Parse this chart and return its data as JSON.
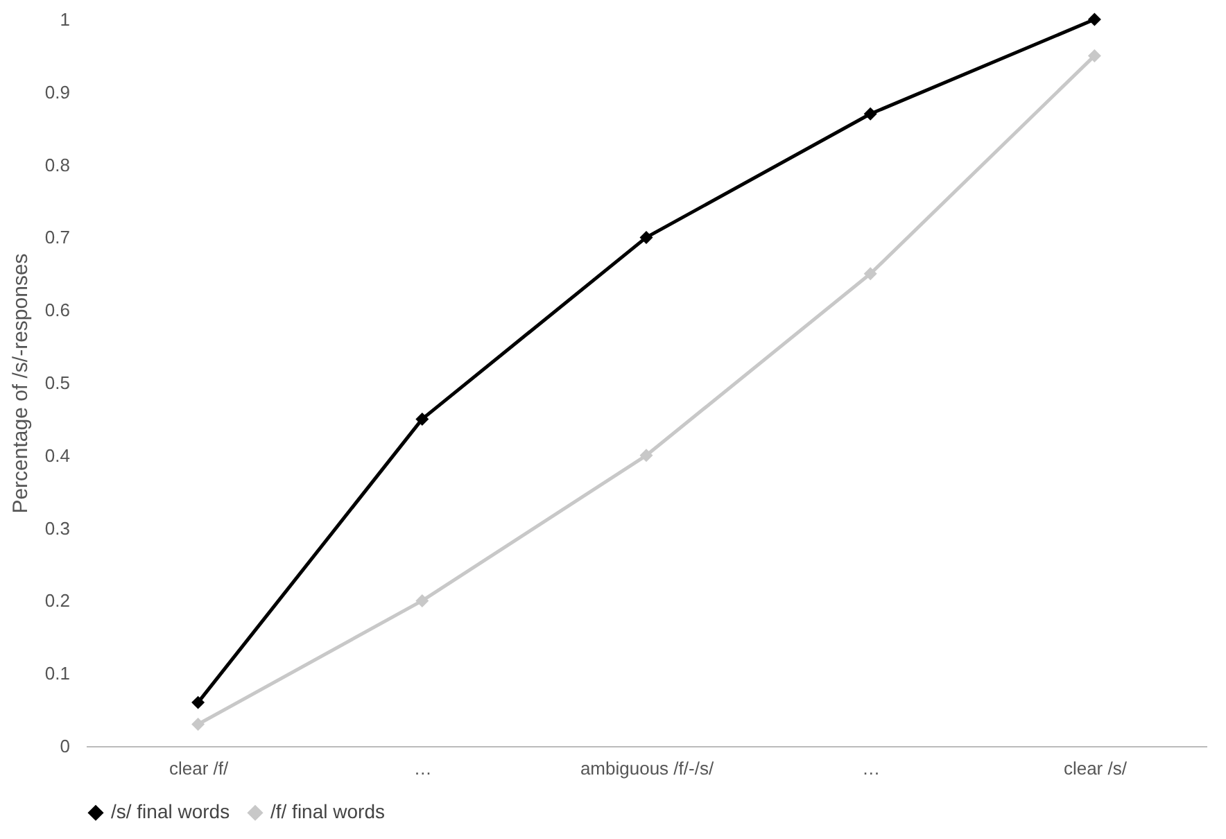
{
  "chart_data": {
    "type": "line",
    "ylabel": "Percentage of /s/-responses",
    "categories": [
      "clear /f/",
      "…",
      "ambiguous /f/-/s/",
      "…",
      "clear /s/"
    ],
    "series": [
      {
        "name": "/s/ final words",
        "color": "#000000",
        "values": [
          0.06,
          0.45,
          0.7,
          0.87,
          1.0
        ]
      },
      {
        "name": "/f/ final words",
        "color": "#c8c8c8",
        "values": [
          0.03,
          0.2,
          0.4,
          0.65,
          0.95
        ]
      }
    ],
    "ylim": [
      0,
      1
    ],
    "yticks": [
      0,
      0.1,
      0.2,
      0.3,
      0.4,
      0.5,
      0.6,
      0.7,
      0.8,
      0.9,
      1
    ],
    "grid": false,
    "legend": "bottom",
    "marker": "diamond",
    "line_style": "solid"
  }
}
